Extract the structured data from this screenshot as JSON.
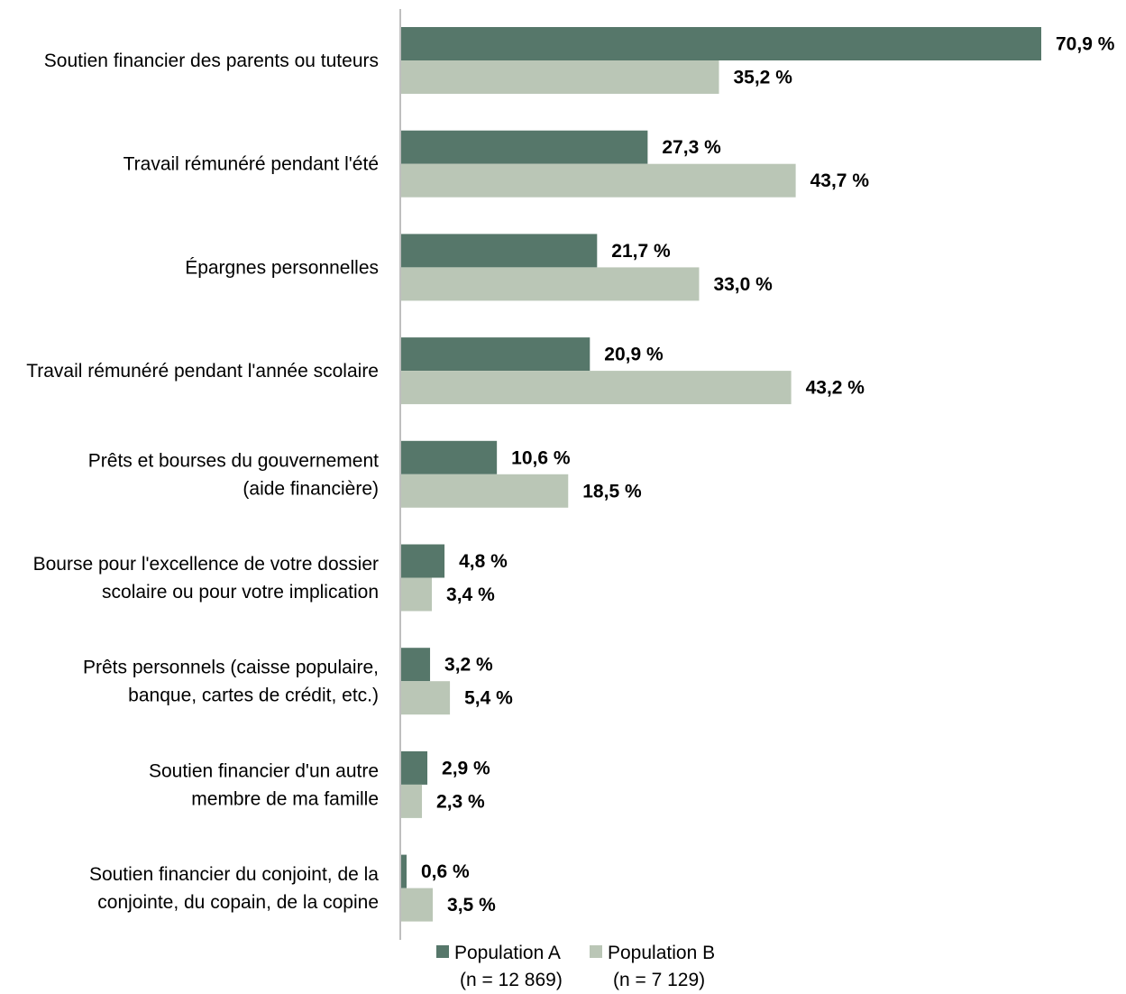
{
  "chart_data": {
    "type": "bar",
    "orientation": "horizontal",
    "categories": [
      [
        "Soutien financier des parents ou tuteurs"
      ],
      [
        "Travail rémunéré pendant l'été"
      ],
      [
        "Épargnes personnelles"
      ],
      [
        "Travail rémunéré pendant l'année scolaire"
      ],
      [
        "Prêts et bourses du gouvernement",
        "(aide financière)"
      ],
      [
        "Bourse pour l'excellence de votre dossier",
        "scolaire ou pour votre implication"
      ],
      [
        "Prêts personnels (caisse populaire,",
        "banque, cartes de crédit, etc.)"
      ],
      [
        "Soutien financier d'un autre",
        "membre de ma famille"
      ],
      [
        "Soutien financier du conjoint, de la",
        "conjointe, du copain, de la copine"
      ]
    ],
    "series": [
      {
        "name": [
          "Population A",
          "(n = 12 869)"
        ],
        "color": "#56776a",
        "values": [
          70.9,
          27.3,
          21.7,
          20.9,
          10.6,
          4.8,
          3.2,
          2.9,
          0.6
        ],
        "labels": [
          "70,9 %",
          "27,3 %",
          "21,7 %",
          "20,9 %",
          "10,6 %",
          "4,8 %",
          "3,2 %",
          "2,9 %",
          "0,6 %"
        ]
      },
      {
        "name": [
          "Population B",
          "(n = 7 129)"
        ],
        "color": "#bac6b6",
        "values": [
          35.2,
          43.7,
          33.0,
          43.2,
          18.5,
          3.4,
          5.4,
          2.3,
          3.5
        ],
        "labels": [
          "35,2 %",
          "43,7 %",
          "33,0 %",
          "43,2 %",
          "18,5 %",
          "3,4 %",
          "5,4 %",
          "2,3 %",
          "3,5 %"
        ]
      }
    ],
    "xlim": [
      0,
      70.9
    ],
    "grid": false,
    "legend": "bottom",
    "axis_color": "#bfbfbf"
  }
}
